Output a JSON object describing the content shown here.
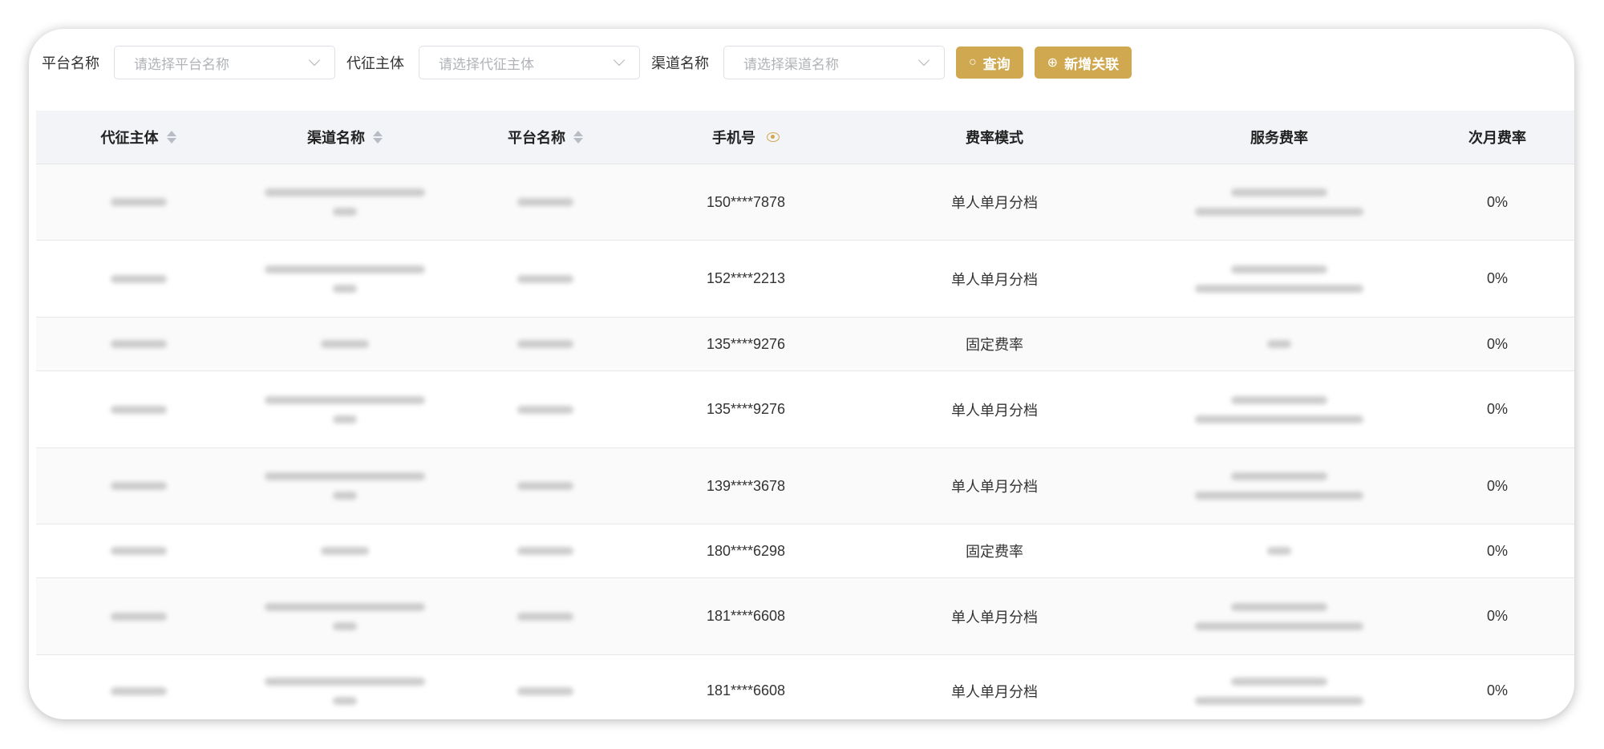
{
  "filters": {
    "platform": {
      "label": "平台名称",
      "placeholder": "请选择平台名称"
    },
    "tax_entity": {
      "label": "代征主体",
      "placeholder": "请选择代征主体"
    },
    "channel": {
      "label": "渠道名称",
      "placeholder": "请选择渠道名称"
    },
    "search_button": "查询",
    "add_button": "新增关联",
    "accent_color": "#cfa84f"
  },
  "table": {
    "columns": [
      "代征主体",
      "渠道名称",
      "平台名称",
      "手机号",
      "费率模式",
      "服务费率",
      "次月费率"
    ],
    "rows": [
      {
        "phone": "150****7878",
        "mode": "单人单月分档",
        "next_rate": "0%"
      },
      {
        "phone": "152****2213",
        "mode": "单人单月分档",
        "next_rate": "0%"
      },
      {
        "phone": "135****9276",
        "mode": "固定费率",
        "next_rate": "0%"
      },
      {
        "phone": "135****9276",
        "mode": "单人单月分档",
        "next_rate": "0%"
      },
      {
        "phone": "139****3678",
        "mode": "单人单月分档",
        "next_rate": "0%"
      },
      {
        "phone": "180****6298",
        "mode": "固定费率",
        "next_rate": "0%"
      },
      {
        "phone": "181****6608",
        "mode": "单人单月分档",
        "next_rate": "0%"
      },
      {
        "phone": "181****6608",
        "mode": "单人单月分档",
        "next_rate": "0%"
      }
    ]
  }
}
